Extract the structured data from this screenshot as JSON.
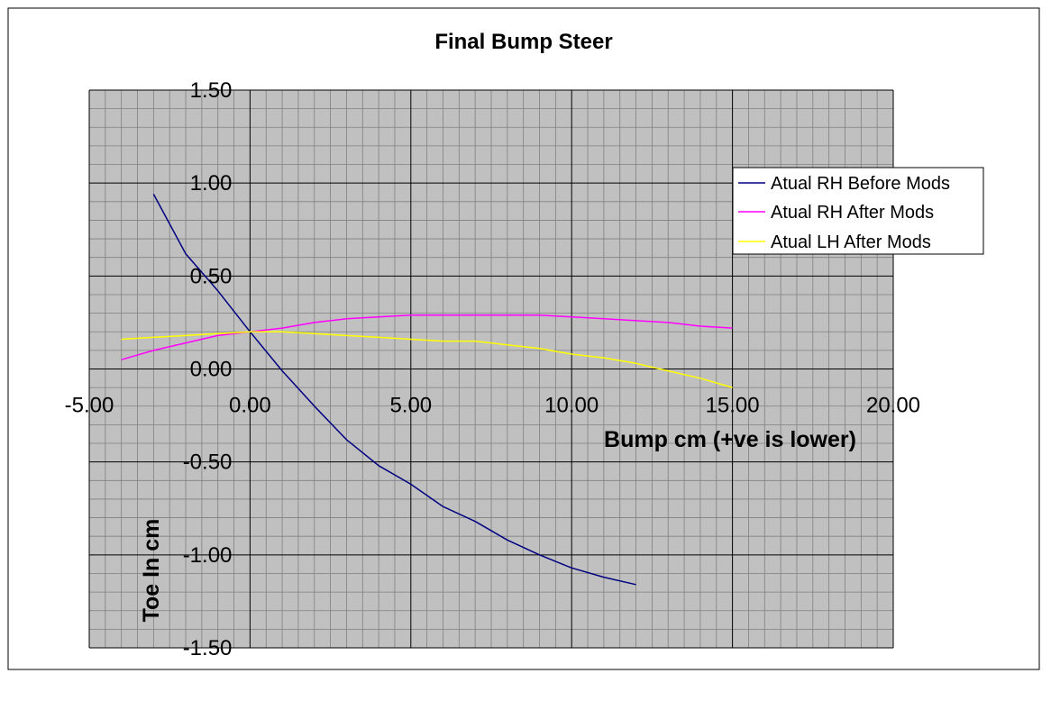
{
  "chart_data": {
    "type": "line",
    "title": "Final Bump Steer",
    "xlabel": "Bump cm (+ve is lower)",
    "ylabel": "Toe In cm",
    "xlim": [
      -5,
      20
    ],
    "ylim": [
      -1.5,
      1.5
    ],
    "x_ticks": [
      "-5.00",
      "0.00",
      "5.00",
      "10.00",
      "15.00",
      "20.00"
    ],
    "y_ticks": [
      "1.50",
      "1.00",
      "0.50",
      "0.00",
      "-0.50",
      "-1.00",
      "-1.50"
    ],
    "grid": true,
    "legend_position": "right",
    "series": [
      {
        "name": "Atual RH Before Mods",
        "color": "#000080",
        "x": [
          -3,
          -2,
          -1,
          0,
          1,
          2,
          3,
          4,
          5,
          6,
          7,
          8,
          9,
          10,
          11,
          12
        ],
        "y": [
          0.94,
          0.62,
          0.42,
          0.2,
          -0.01,
          -0.2,
          -0.38,
          -0.52,
          -0.62,
          -0.74,
          -0.82,
          -0.92,
          -1.0,
          -1.07,
          -1.12,
          -1.16
        ]
      },
      {
        "name": "Atual RH After Mods",
        "color": "#ff00ff",
        "x": [
          -4,
          -3,
          -2,
          -1,
          0,
          1,
          2,
          3,
          4,
          5,
          6,
          7,
          8,
          9,
          10,
          11,
          12,
          13,
          14,
          15
        ],
        "y": [
          0.05,
          0.1,
          0.14,
          0.18,
          0.2,
          0.22,
          0.25,
          0.27,
          0.28,
          0.29,
          0.29,
          0.29,
          0.29,
          0.29,
          0.28,
          0.27,
          0.26,
          0.25,
          0.23,
          0.22
        ]
      },
      {
        "name": "Atual LH After Mods",
        "color": "#ffff00",
        "x": [
          -4,
          -3,
          -2,
          -1,
          0,
          1,
          2,
          3,
          4,
          5,
          6,
          7,
          8,
          9,
          10,
          11,
          12,
          13,
          14,
          15
        ],
        "y": [
          0.16,
          0.17,
          0.18,
          0.19,
          0.2,
          0.2,
          0.19,
          0.18,
          0.17,
          0.16,
          0.15,
          0.15,
          0.13,
          0.11,
          0.08,
          0.06,
          0.03,
          -0.01,
          -0.05,
          -0.1
        ]
      }
    ]
  }
}
